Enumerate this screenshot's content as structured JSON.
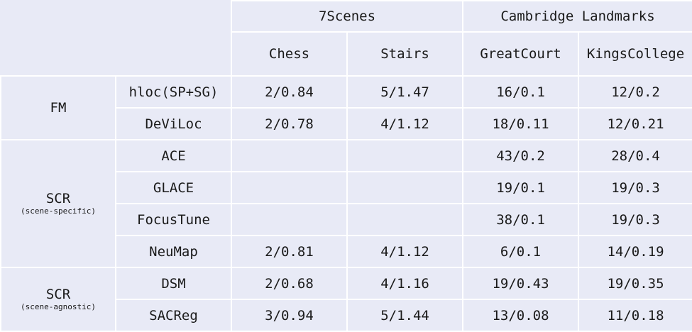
{
  "header": {
    "groups": [
      "7Scenes",
      "Cambridge Landmarks"
    ],
    "columns": [
      "Chess",
      "Stairs",
      "GreatCourt",
      "KingsCollege"
    ]
  },
  "sections": [
    {
      "label": "FM",
      "sub": "",
      "rows": [
        {
          "method": "hloc(SP+SG)",
          "values": [
            "2/0.84",
            "5/1.47",
            "16/0.1",
            "12/0.2"
          ]
        },
        {
          "method": "DeViLoc",
          "values": [
            "2/0.78",
            "4/1.12",
            "18/0.11",
            "12/0.21"
          ]
        }
      ]
    },
    {
      "label": "SCR",
      "sub": "(scene-specific)",
      "rows": [
        {
          "method": "ACE",
          "values": [
            "",
            "",
            "43/0.2",
            "28/0.4"
          ]
        },
        {
          "method": "GLACE",
          "values": [
            "",
            "",
            "19/0.1",
            "19/0.3"
          ]
        },
        {
          "method": "FocusTune",
          "values": [
            "",
            "",
            "38/0.1",
            "19/0.3"
          ]
        },
        {
          "method": "NeuMap",
          "values": [
            "2/0.81",
            "4/1.12",
            "6/0.1",
            "14/0.19"
          ]
        }
      ]
    },
    {
      "label": "SCR",
      "sub": "(scene-agnostic)",
      "rows": [
        {
          "method": "DSM",
          "values": [
            "2/0.68",
            "4/1.16",
            "19/0.43",
            "19/0.35"
          ]
        },
        {
          "method": "SACReg",
          "values": [
            "3/0.94",
            "5/1.44",
            "13/0.08",
            "11/0.18"
          ]
        }
      ]
    }
  ]
}
